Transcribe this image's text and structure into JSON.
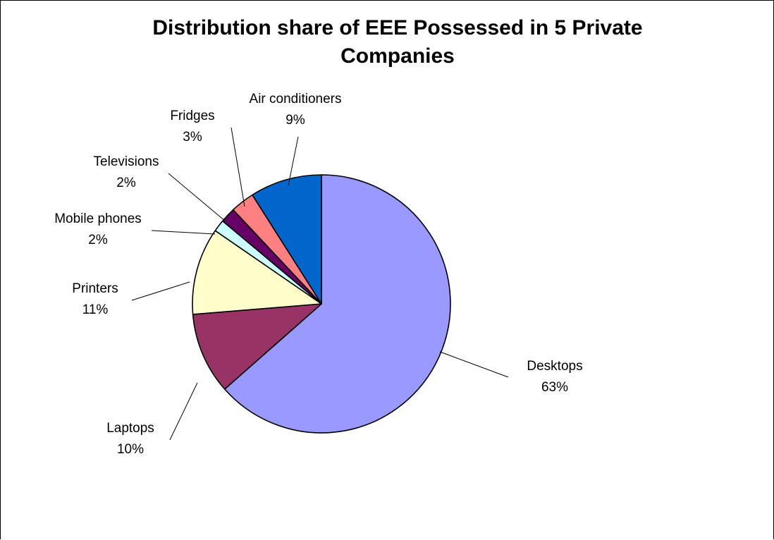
{
  "chart_data": {
    "type": "pie",
    "title_lines": [
      "Distribution share of EEE Possessed in 5 Private",
      "Companies"
    ],
    "legend": "none",
    "slices": [
      {
        "label": "Desktops",
        "value_label": "63%",
        "value": 63.5,
        "color": "#9999FF"
      },
      {
        "label": "Laptops",
        "value_label": "10%",
        "value": 10.2,
        "color": "#993366"
      },
      {
        "label": "Printers",
        "value_label": "11%",
        "value": 10.9,
        "color": "#FFFFCC"
      },
      {
        "label": "Mobile phones",
        "value_label": "2%",
        "value": 1.5,
        "color": "#CCFFFF"
      },
      {
        "label": "Televisions",
        "value_label": "2%",
        "value": 1.9,
        "color": "#660066"
      },
      {
        "label": "Fridges",
        "value_label": "3%",
        "value": 3.0,
        "color": "#FF8080"
      },
      {
        "label": "Air conditioners",
        "value_label": "9%",
        "value": 9.0,
        "color": "#0066CC"
      }
    ]
  }
}
